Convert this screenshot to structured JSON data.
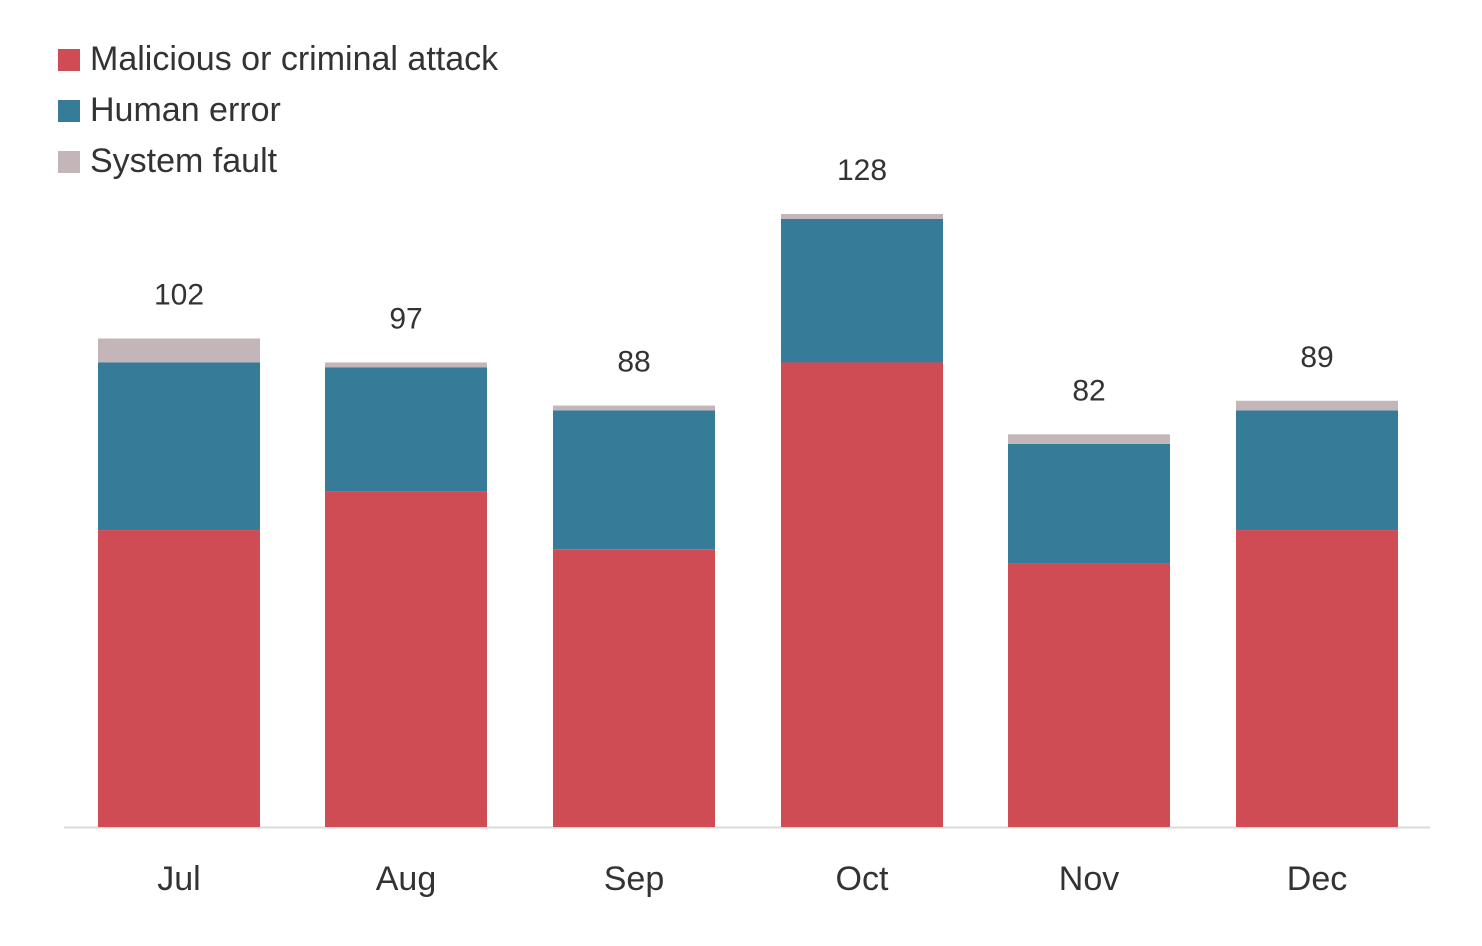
{
  "chart_data": {
    "type": "bar",
    "stacked": true,
    "categories": [
      "Jul",
      "Aug",
      "Sep",
      "Oct",
      "Nov",
      "Dec"
    ],
    "series": [
      {
        "name": "Malicious or criminal attack",
        "color": "#d04c55",
        "values": [
          62,
          70,
          58,
          97,
          55,
          62
        ]
      },
      {
        "name": "Human error",
        "color": "#367b97",
        "values": [
          35,
          26,
          29,
          30,
          25,
          25
        ]
      },
      {
        "name": "System fault",
        "color": "#c4b5b9",
        "values": [
          5,
          1,
          1,
          1,
          2,
          2
        ]
      }
    ],
    "totals": [
      "102",
      "97",
      "88",
      "128",
      "82",
      "89"
    ],
    "ylim": [
      0,
      135
    ],
    "legend_position": "top-left",
    "grid": false,
    "title": "",
    "xlabel": "",
    "ylabel": ""
  }
}
